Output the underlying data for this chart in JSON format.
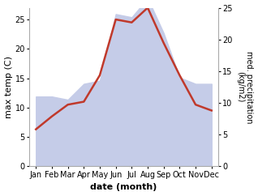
{
  "months": [
    "Jan",
    "Feb",
    "Mar",
    "Apr",
    "May",
    "Jun",
    "Jul",
    "Aug",
    "Sep",
    "Oct",
    "Nov",
    "Dec"
  ],
  "month_indices": [
    0,
    1,
    2,
    3,
    4,
    5,
    6,
    7,
    8,
    9,
    10,
    11
  ],
  "max_temp": [
    6.3,
    8.5,
    10.5,
    11.0,
    15.5,
    25.0,
    24.5,
    27.0,
    21.0,
    15.5,
    10.5,
    9.5
  ],
  "precipitation": [
    11.0,
    11.0,
    10.5,
    13.0,
    13.5,
    24.0,
    23.5,
    26.5,
    21.0,
    14.0,
    13.0,
    13.0
  ],
  "temp_color": "#c0392b",
  "precip_fill_color": "#c5cce8",
  "precip_fill_alpha": 1.0,
  "left_ylim": [
    0,
    27
  ],
  "right_ylim": [
    0,
    25
  ],
  "left_yticks": [
    0,
    5,
    10,
    15,
    20,
    25
  ],
  "right_yticks": [
    0,
    5,
    10,
    15,
    20,
    25
  ],
  "xlabel": "date (month)",
  "ylabel_left": "max temp (C)",
  "ylabel_right": "med. precipitation\n(kg/m2)",
  "bg_color": "#ffffff",
  "tick_label_fontsize": 7,
  "axis_label_fontsize": 8,
  "xlabel_fontweight": "bold",
  "line_width": 1.8,
  "xlim": [
    -0.4,
    11.4
  ]
}
